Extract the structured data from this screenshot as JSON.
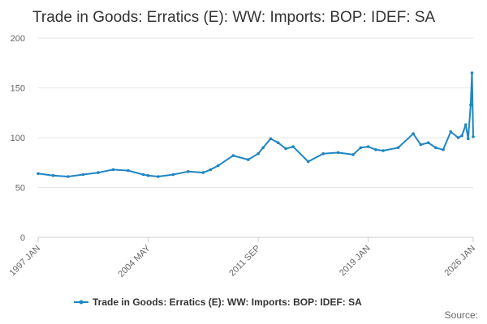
{
  "chart_data": {
    "type": "line",
    "title": "Trade in Goods: Erratics (E): WW: Imports: BOP: IDEF: SA",
    "xlabel": "",
    "ylabel": "",
    "ylim": [
      0,
      200
    ],
    "y_ticks": [
      0,
      50,
      100,
      150,
      200
    ],
    "x_ticks": [
      "1997 JAN",
      "2004 MAY",
      "2011 SEP",
      "2019 JAN",
      "2026 JAN"
    ],
    "legend_position": "bottom",
    "grid": "horizontal",
    "series_color": "#1f85c4",
    "series": [
      {
        "name": "Trade in Goods: Erratics (E): WW: Imports: BOP: IDEF: SA",
        "x": [
          "1997 JAN",
          "1998 JAN",
          "1999 JAN",
          "2000 JAN",
          "2001 JAN",
          "2002 JAN",
          "2003 JAN",
          "2004 JAN",
          "2004 MAY",
          "2005 JAN",
          "2006 JAN",
          "2007 JAN",
          "2008 JAN",
          "2008 JUL",
          "2009 JAN",
          "2010 JAN",
          "2011 JAN",
          "2011 SEP",
          "2012 JAN",
          "2012 JUL",
          "2013 JAN",
          "2013 JUL",
          "2014 JAN",
          "2015 JAN",
          "2016 JAN",
          "2017 JAN",
          "2018 JAN",
          "2018 JUL",
          "2019 JAN",
          "2019 JUL",
          "2020 JAN",
          "2021 JAN",
          "2022 JAN",
          "2022 JUL",
          "2023 JAN",
          "2023 JUL",
          "2024 JAN",
          "2024 JUL",
          "2025 JAN",
          "2025 APR",
          "2025 JUL",
          "2025 SEP",
          "2025 NOV",
          "2025 DEC",
          "2026 JAN"
        ],
        "values": [
          64,
          62,
          61,
          63,
          65,
          68,
          67,
          63,
          62,
          61,
          63,
          66,
          65,
          68,
          72,
          82,
          78,
          84,
          90,
          99,
          95,
          89,
          91,
          76,
          84,
          85,
          83,
          90,
          91,
          88,
          87,
          90,
          104,
          93,
          95,
          90,
          88,
          106,
          100,
          102,
          113,
          99,
          133,
          165,
          101
        ]
      }
    ]
  },
  "legend": {
    "label": "Trade in Goods: Erratics (E): WW: Imports: BOP: IDEF: SA"
  },
  "source": {
    "label": "Source:"
  }
}
